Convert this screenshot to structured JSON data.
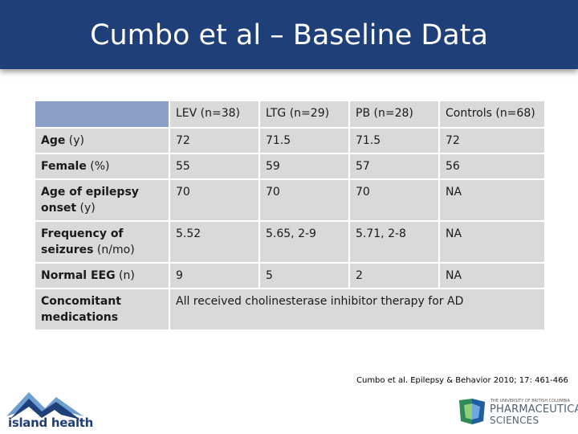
{
  "slide": {
    "title": "Cumbo et al – Baseline Data"
  },
  "table": {
    "headers": [
      "",
      "LEV (n=38)",
      "LTG (n=29)",
      "PB (n=28)",
      "Controls (n=68)"
    ],
    "rows": [
      {
        "label": "Age",
        "unit": " (y)",
        "values": [
          "72",
          "71.5",
          "71.5",
          "72"
        ]
      },
      {
        "label": "Female",
        "unit": " (%)",
        "values": [
          "55",
          "59",
          "57",
          "56"
        ]
      },
      {
        "label": "Age of epilepsy onset",
        "unit": " (y)",
        "values": [
          "70",
          "70",
          "70",
          "NA"
        ]
      },
      {
        "label": "Frequency of seizures",
        "unit": " (n/mo)",
        "values": [
          "5.52",
          "5.65, 2-9",
          "5.71, 2-8",
          "NA"
        ]
      },
      {
        "label": "Normal EEG",
        "unit": " (n)",
        "values": [
          "9",
          "5",
          "2",
          "NA"
        ]
      }
    ],
    "last_row": {
      "label": "Concomitant medications",
      "text": "All received cholinesterase inhibitor therapy for AD"
    }
  },
  "citation": "Cumbo et al. Epilepsy & Behavior 2010; 17: 461-466",
  "logos": {
    "island_health": "island health",
    "ubc_small": "THE UNIVERSITY OF BRITISH COLUMBIA",
    "ubc_main": "PHARMACEUTICAL",
    "ubc_sub": "SCIENCES"
  },
  "colors": {
    "title_bar": "#1f3f78",
    "header_corner": "#8c9fc8",
    "cell": "#d9d9d9"
  }
}
